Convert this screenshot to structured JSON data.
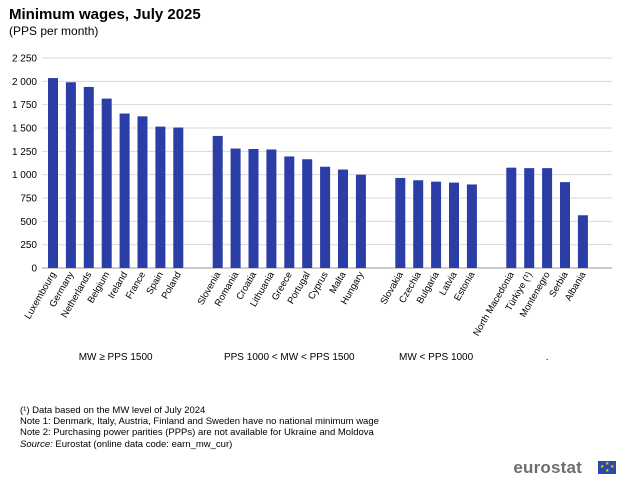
{
  "header": {
    "title": "Minimum wages, July 2025",
    "subtitle": "(PPS per month)"
  },
  "chart_data": {
    "type": "bar",
    "ylim": [
      0,
      2250
    ],
    "yticks": [
      0,
      250,
      500,
      750,
      1000,
      1250,
      1500,
      1750,
      2000,
      2250
    ],
    "ytick_labels": [
      "0",
      "250",
      "500",
      "750",
      "1 000",
      "1 250",
      "1 500",
      "1 750",
      "2 000",
      "2 250"
    ],
    "grid": true,
    "bar_color": "#2b3da6",
    "groups": [
      {
        "label": "MW ≥ PPS 1500",
        "categories": [
          "Luxembourg",
          "Germany",
          "Netherlands",
          "Belgium",
          "Ireland",
          "France",
          "Spain",
          "Poland"
        ],
        "values": [
          2035,
          1990,
          1940,
          1815,
          1655,
          1625,
          1515,
          1505
        ]
      },
      {
        "label": "PPS 1000 < MW < PPS 1500",
        "categories": [
          "Slovenia",
          "Romania",
          "Croatia",
          "Lithuania",
          "Greece",
          "Portugal",
          "Cyprus",
          "Malta",
          "Hungary"
        ],
        "values": [
          1415,
          1280,
          1275,
          1270,
          1195,
          1165,
          1085,
          1055,
          1000
        ]
      },
      {
        "label": "MW < PPS 1000",
        "categories": [
          "Slovakia",
          "Czechia",
          "Bulgaria",
          "Latvia",
          "Estonia"
        ],
        "values": [
          965,
          940,
          925,
          915,
          895
        ]
      },
      {
        "label": ".",
        "categories": [
          "North Macedonia",
          "Türkiye (¹)",
          "Montenegro",
          "Serbia",
          "Albania"
        ],
        "values": [
          1075,
          1070,
          1070,
          920,
          565
        ]
      }
    ]
  },
  "notes": {
    "note_a": "(¹) Data based on the MW level of July 2024",
    "note_1": "Note 1: Denmark, Italy, Austria, Finland and Sweden have no national minimum wage",
    "note_2": "Note 2: Purchasing power parities (PPPs) are not available for Ukraine and Moldova",
    "source_label": "Source:",
    "source_text": " Eurostat (online data code: earn_mw_cur)"
  },
  "brand": {
    "name": "eurostat",
    "flag_color": "#2a4aa5"
  }
}
